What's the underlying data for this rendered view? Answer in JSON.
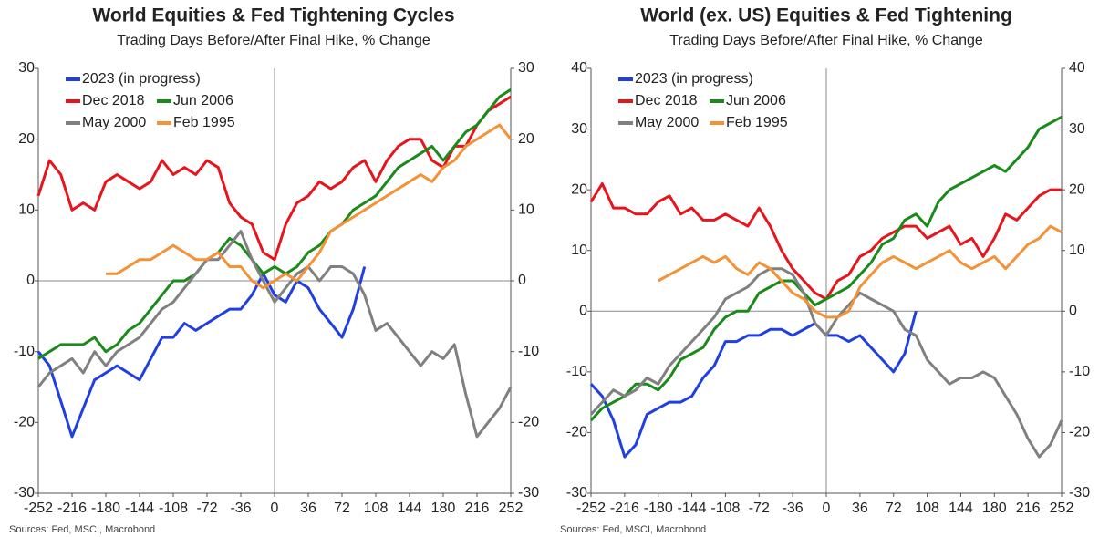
{
  "chart_data": [
    {
      "type": "line",
      "title": "World Equities & Fed Tightening Cycles",
      "subtitle": "Trading Days Before/After Final Hike, % Change",
      "source": "Sources: Fed, MSCI, Macrobond",
      "x": [
        -252,
        -240,
        -228,
        -216,
        -204,
        -192,
        -180,
        -168,
        -156,
        -144,
        -132,
        -120,
        -108,
        -96,
        -84,
        -72,
        -60,
        -48,
        -36,
        -24,
        -12,
        0,
        12,
        24,
        36,
        48,
        60,
        72,
        84,
        96,
        108,
        120,
        132,
        144,
        156,
        168,
        180,
        192,
        204,
        216,
        228,
        240,
        252
      ],
      "xlim": [
        -252,
        252
      ],
      "xticks": [
        -252,
        -216,
        -180,
        -144,
        -108,
        -72,
        -36,
        0,
        36,
        72,
        108,
        144,
        180,
        216,
        252
      ],
      "ylim": [
        -30,
        30
      ],
      "yticks": [
        -30,
        -20,
        -10,
        0,
        10,
        20,
        30
      ],
      "legend": "upper left",
      "series": [
        {
          "name": "2023 (in progress)",
          "color": "#1f3fe0",
          "values": [
            -10,
            -12,
            -17,
            -22,
            -18,
            -14,
            -13,
            -12,
            -13,
            -14,
            -11,
            -8,
            -8,
            -6,
            -7,
            -6,
            -5,
            -4,
            -4,
            -2,
            1,
            -2,
            -3,
            0,
            -1,
            -4,
            -6,
            -8,
            -4,
            2,
            null,
            null,
            null,
            null,
            null,
            null,
            null,
            null,
            null,
            null,
            null,
            null,
            null
          ]
        },
        {
          "name": "Dec 2018",
          "color": "#e8141c",
          "values": [
            12,
            17,
            15,
            10,
            11,
            10,
            14,
            15,
            14,
            13,
            14,
            17,
            15,
            16,
            15,
            17,
            16,
            11,
            9,
            8,
            4,
            3,
            8,
            11,
            12,
            14,
            13,
            14,
            16,
            17,
            14,
            17,
            19,
            20,
            20,
            17,
            16,
            19,
            19,
            22,
            24,
            25,
            26
          ]
        },
        {
          "name": "Jun 2006",
          "color": "#1a8a1a",
          "values": [
            -11,
            -10,
            -9,
            -9,
            -9,
            -8,
            -10,
            -9,
            -7,
            -6,
            -4,
            -2,
            0,
            0,
            1,
            3,
            4,
            6,
            5,
            3,
            1,
            2,
            1,
            2,
            4,
            5,
            7,
            8,
            10,
            11,
            12,
            14,
            16,
            17,
            18,
            19,
            17,
            19,
            21,
            22,
            24,
            26,
            27
          ]
        },
        {
          "name": "May 2000",
          "color": "#808080",
          "values": [
            -15,
            -13,
            -12,
            -11,
            -13,
            -10,
            -12,
            -10,
            -9,
            -8,
            -6,
            -4,
            -3,
            -1,
            1,
            3,
            3,
            5,
            7,
            3,
            0,
            -3,
            -1,
            1,
            2,
            0,
            2,
            2,
            1,
            -2,
            -7,
            -6,
            -8,
            -10,
            -12,
            -10,
            -11,
            -9,
            -16,
            -22,
            -20,
            -18,
            -15
          ]
        },
        {
          "name": "Feb 1995",
          "color": "#f39237",
          "values": [
            null,
            null,
            null,
            null,
            null,
            null,
            1,
            1,
            2,
            3,
            3,
            4,
            5,
            4,
            3,
            3,
            4,
            2,
            2,
            0,
            -1,
            0,
            1,
            0,
            2,
            4,
            7,
            8,
            9,
            10,
            11,
            12,
            13,
            14,
            15,
            14,
            16,
            17,
            19,
            20,
            21,
            22,
            20
          ]
        }
      ]
    },
    {
      "type": "line",
      "title": "World (ex. US) Equities & Fed Tightening",
      "subtitle": "Trading Days Before/After Final Hike, % Change",
      "source": "Sources: Fed, MSCI, Macrobond",
      "x": [
        -252,
        -240,
        -228,
        -216,
        -204,
        -192,
        -180,
        -168,
        -156,
        -144,
        -132,
        -120,
        -108,
        -96,
        -84,
        -72,
        -60,
        -48,
        -36,
        -24,
        -12,
        0,
        12,
        24,
        36,
        48,
        60,
        72,
        84,
        96,
        108,
        120,
        132,
        144,
        156,
        168,
        180,
        192,
        204,
        216,
        228,
        240,
        252
      ],
      "xlim": [
        -252,
        252
      ],
      "xticks": [
        -252,
        -216,
        -180,
        -144,
        -108,
        -72,
        -36,
        0,
        36,
        72,
        108,
        144,
        180,
        216,
        252
      ],
      "ylim": [
        -30,
        40
      ],
      "yticks": [
        -30,
        -20,
        -10,
        0,
        10,
        20,
        30,
        40
      ],
      "legend": "upper left",
      "series": [
        {
          "name": "2023 (in progress)",
          "color": "#1f3fe0",
          "values": [
            -12,
            -14,
            -18,
            -24,
            -22,
            -17,
            -16,
            -15,
            -15,
            -14,
            -11,
            -9,
            -5,
            -5,
            -4,
            -4,
            -3,
            -3,
            -4,
            -3,
            -2,
            -4,
            -4,
            -5,
            -4,
            -6,
            -8,
            -10,
            -7,
            0,
            null,
            null,
            null,
            null,
            null,
            null,
            null,
            null,
            null,
            null,
            null,
            null,
            null
          ]
        },
        {
          "name": "Dec 2018",
          "color": "#e8141c",
          "values": [
            18,
            21,
            17,
            17,
            16,
            16,
            18,
            19,
            16,
            17,
            15,
            15,
            16,
            15,
            14,
            17,
            14,
            10,
            7,
            5,
            3,
            2,
            5,
            6,
            9,
            10,
            12,
            13,
            14,
            14,
            12,
            13,
            14,
            11,
            12,
            9,
            12,
            16,
            15,
            17,
            19,
            20,
            20
          ]
        },
        {
          "name": "Jun 2006",
          "color": "#1a8a1a",
          "values": [
            -18,
            -16,
            -15,
            -14,
            -12,
            -12,
            -13,
            -11,
            -8,
            -7,
            -6,
            -3,
            -1,
            0,
            0,
            3,
            4,
            5,
            5,
            3,
            1,
            2,
            3,
            4,
            6,
            8,
            11,
            12,
            15,
            16,
            14,
            18,
            20,
            21,
            22,
            23,
            24,
            23,
            25,
            27,
            30,
            31,
            32
          ]
        },
        {
          "name": "May 2000",
          "color": "#808080",
          "values": [
            -17,
            -15,
            -13,
            -14,
            -13,
            -11,
            -12,
            -9,
            -7,
            -5,
            -3,
            -1,
            2,
            3,
            4,
            6,
            7,
            7,
            6,
            3,
            -2,
            -4,
            -1,
            1,
            3,
            2,
            1,
            0,
            -3,
            -4,
            -8,
            -10,
            -12,
            -11,
            -11,
            -10,
            -11,
            -14,
            -17,
            -21,
            -24,
            -22,
            -18
          ]
        },
        {
          "name": "Feb 1995",
          "color": "#f39237",
          "values": [
            null,
            null,
            null,
            null,
            null,
            null,
            5,
            6,
            7,
            8,
            9,
            8,
            9,
            7,
            6,
            8,
            7,
            5,
            3,
            2,
            0,
            -1,
            -1,
            0,
            4,
            6,
            8,
            9,
            8,
            7,
            8,
            9,
            10,
            8,
            7,
            8,
            9,
            7,
            9,
            11,
            12,
            14,
            13
          ]
        }
      ]
    }
  ]
}
